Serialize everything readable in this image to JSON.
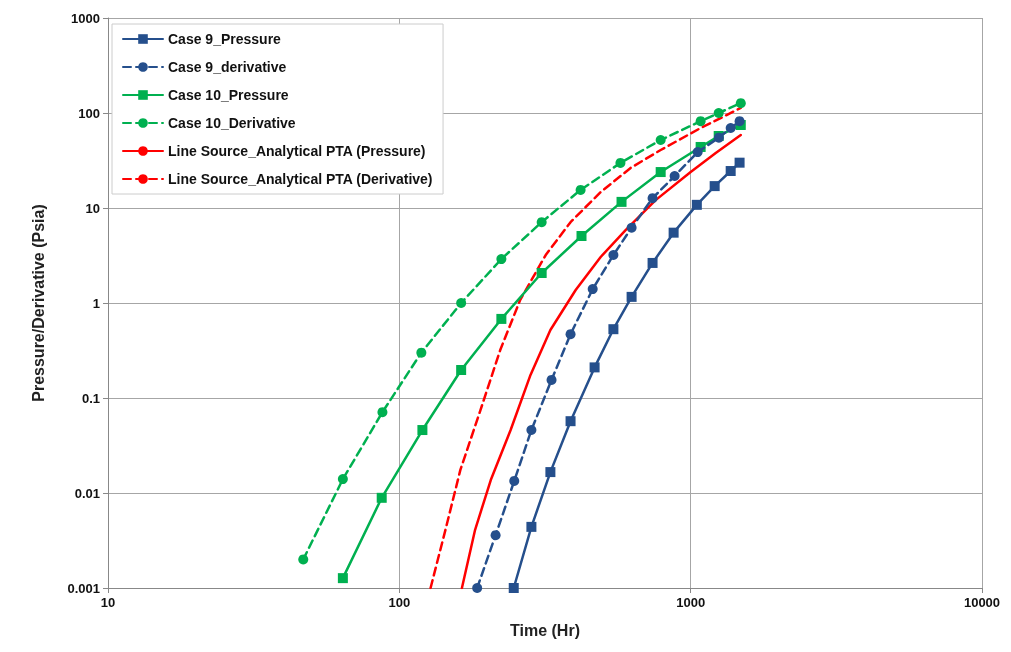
{
  "chart_data": {
    "type": "line",
    "xlabel": "Time (Hr)",
    "ylabel": "Pressure/Derivative (Psia)",
    "log": "xy",
    "xlim": [
      10,
      10000
    ],
    "xticks": [
      10,
      100,
      1000,
      10000
    ],
    "ylim": [
      0.001,
      1000
    ],
    "yticks": [
      0.001,
      0.01,
      0.1,
      1,
      10,
      100,
      1000
    ],
    "grid": true,
    "legend": "top left",
    "series": [
      {
        "name": "Case 9_Pressure",
        "color": "#254f8c",
        "marker": "square",
        "line_style": "solid",
        "x": [
          247,
          284,
          330,
          387,
          468,
          543,
          627,
          740,
          874,
          1050,
          1209,
          1372,
          1472
        ],
        "values": [
          0.001,
          0.0044,
          0.0166,
          0.057,
          0.21,
          0.53,
          1.16,
          2.64,
          5.5,
          10.8,
          17,
          24.5,
          30
        ]
      },
      {
        "name": "Case 9_derivative",
        "color": "#254f8c",
        "marker": "circle",
        "line_style": "dashed",
        "x": [
          185,
          214,
          248,
          284,
          333,
          387,
          461,
          543,
          627,
          740,
          881,
          1057,
          1250,
          1372,
          1472
        ],
        "values": [
          0.001,
          0.0036,
          0.0134,
          0.046,
          0.155,
          0.47,
          1.4,
          3.2,
          6.2,
          12.7,
          21.7,
          38.8,
          55,
          69.5,
          82
        ]
      },
      {
        "name": "Case 10_Pressure",
        "color": "#00b050",
        "marker": "square",
        "line_style": "solid",
        "x": [
          64,
          87,
          120,
          163,
          224,
          308,
          422,
          579,
          789,
          1082,
          1248,
          1486
        ],
        "values": [
          0.00127,
          0.0089,
          0.046,
          0.197,
          0.68,
          2.07,
          5.07,
          11.6,
          23.9,
          43.9,
          57.3,
          74.8
        ]
      },
      {
        "name": "Case 10_Derivative",
        "color": "#00b050",
        "marker": "circle",
        "line_style": "dashed",
        "x": [
          46.8,
          64,
          87.5,
          119,
          163,
          224,
          308,
          419,
          574,
          789,
          1082,
          1248,
          1486
        ],
        "values": [
          0.002,
          0.014,
          0.071,
          0.3,
          1.0,
          2.9,
          7.1,
          15.5,
          29.8,
          52,
          82,
          100,
          127
        ]
      },
      {
        "name": "Line Source_Analytical PTA (Pressure)",
        "color": "#ff0000",
        "marker": "none",
        "line_style": "solid",
        "x": [
          164,
          182,
          206,
          241,
          282,
          330,
          403,
          491,
          598,
          758,
          1000,
          1219,
          1486
        ],
        "values": [
          0.001,
          0.0041,
          0.0137,
          0.046,
          0.175,
          0.52,
          1.37,
          3.05,
          5.86,
          12.1,
          23.9,
          37.9,
          58.6
        ]
      },
      {
        "name": "Line Source_Analytical PTA (Derivative)",
        "color": "#ff0000",
        "marker": "none",
        "line_style": "dashed",
        "x": [
          128,
          144,
          162,
          190,
          222,
          260,
          318,
          387,
          491,
          622,
          789,
          1082,
          1486
        ],
        "values": [
          0.001,
          0.0041,
          0.0175,
          0.075,
          0.32,
          1.08,
          3.2,
          7.1,
          14.7,
          26.4,
          40.8,
          69.5,
          113
        ]
      }
    ]
  }
}
